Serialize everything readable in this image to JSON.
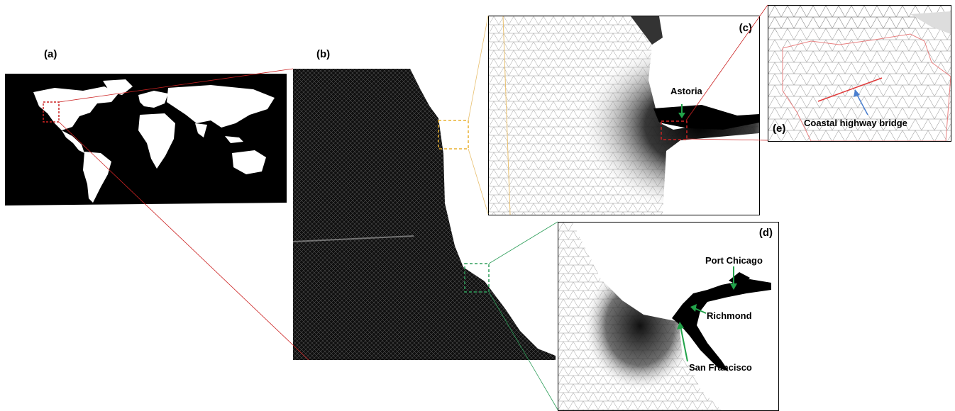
{
  "panels": {
    "a": {
      "label": "(a)"
    },
    "b": {
      "label": "(b)"
    },
    "c": {
      "label": "(c)",
      "annotations": {
        "astoria": "Astoria"
      }
    },
    "d": {
      "label": "(d)",
      "annotations": {
        "port_chicago": "Port Chicago",
        "richmond": "Richmond",
        "san_francisco": "San Francisco"
      }
    },
    "e": {
      "label": "(e)",
      "annotations": {
        "bridge": "Coastal highway bridge"
      }
    }
  },
  "colors": {
    "inset_box_a_b": "#cc2222",
    "inset_box_c": "#e8b030",
    "inset_box_d": "#2e9e5a",
    "inset_box_e": "#cc2222",
    "marker_arrow": "#22a34a",
    "bridge_arrow": "#4a7fd0",
    "bridge_line": "#e03a3a"
  },
  "icons": [
    "world-map",
    "mesh-grid",
    "north-arrow"
  ]
}
